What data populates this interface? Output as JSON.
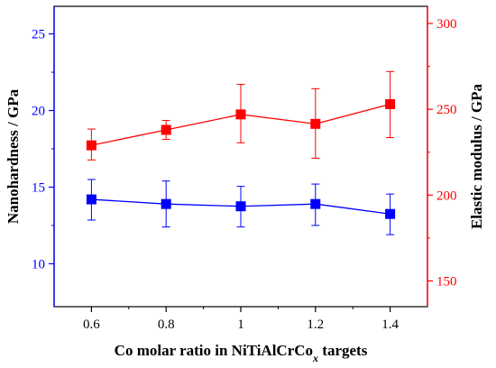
{
  "chart_data": {
    "type": "line",
    "title": "",
    "x": [
      0.6,
      0.8,
      1,
      1.2,
      1.4
    ],
    "x_tick_labels": [
      "0.6",
      "0.8",
      "1",
      "1.2",
      "1.4"
    ],
    "xlim": [
      0.5,
      1.5
    ],
    "xlabel": {
      "prefix": "Co molar ratio in NiTiAlCrCo",
      "subscript": "x",
      "suffix": " targets"
    },
    "y_left": {
      "label": "Nanohardness / GPa",
      "lim": [
        7.2,
        26.8
      ],
      "ticks": [
        "10",
        "15",
        "20",
        "25"
      ],
      "color": "#0000ff"
    },
    "y_right": {
      "label": "Elastic modulus / GPa",
      "lim": [
        135,
        310
      ],
      "ticks": [
        "150",
        "200",
        "250",
        "300"
      ],
      "color": "#ff0000"
    },
    "series": [
      {
        "axis": "left",
        "color": "#0000ff",
        "marker": "square",
        "values": [
          14.2,
          13.9,
          13.75,
          13.9,
          13.25
        ],
        "err_low": [
          12.85,
          12.4,
          12.4,
          12.5,
          11.9
        ],
        "err_high": [
          15.5,
          15.4,
          15.05,
          15.2,
          14.55
        ]
      },
      {
        "axis": "right",
        "color": "#ff0000",
        "marker": "square",
        "values": [
          229,
          238,
          247,
          241.5,
          253
        ],
        "err_low": [
          220.5,
          232.5,
          230.5,
          221.5,
          233.5
        ],
        "err_high": [
          238.5,
          243.5,
          264.5,
          262,
          272
        ]
      }
    ],
    "grid": false,
    "legend": "none"
  }
}
